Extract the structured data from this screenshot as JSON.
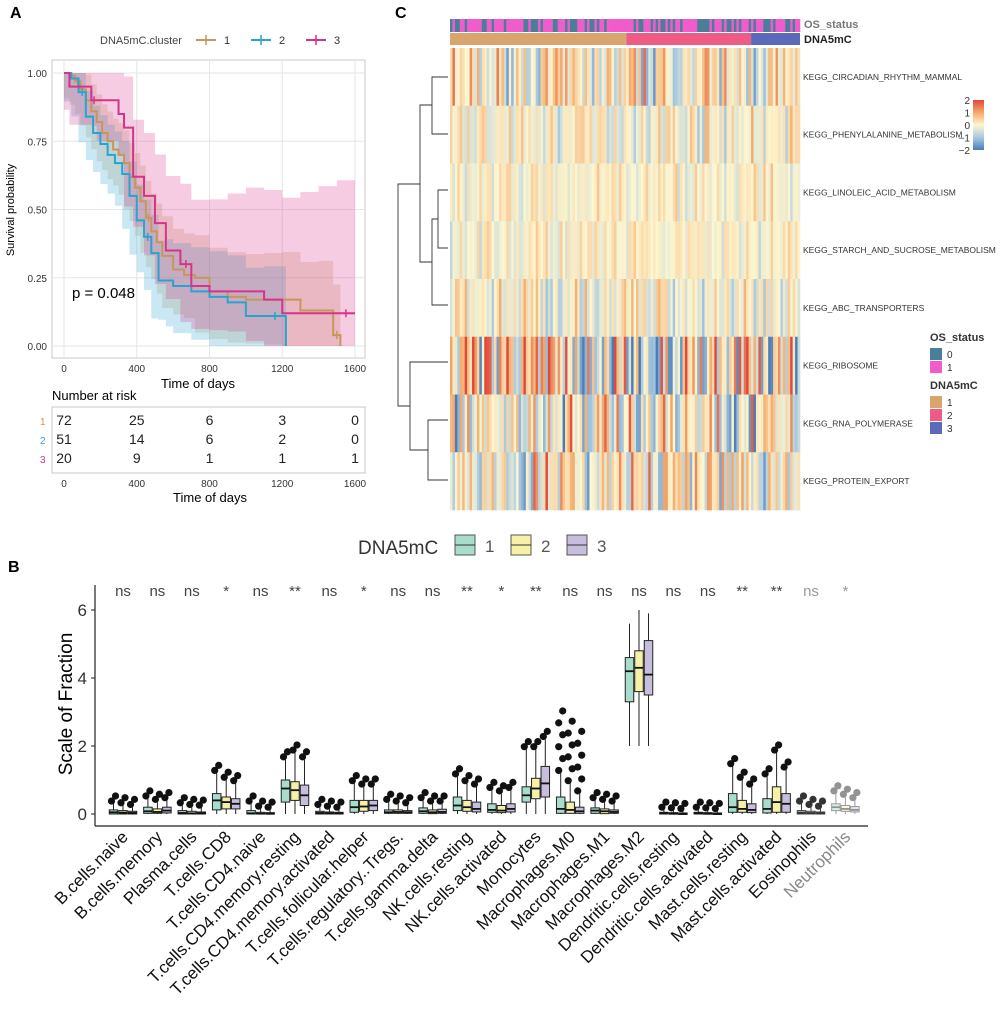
{
  "panel_labels": {
    "a": "A",
    "b": "B",
    "c": "C"
  },
  "colors": {
    "km_1": "#c8965a",
    "km_2": "#2ba3cf",
    "km_3": "#d6338a",
    "os_0": "#4a7f99",
    "os_1": "#f05ccc",
    "dna_1": "#d9a46d",
    "dna_2": "#ee5c86",
    "dna_3": "#5c69b8",
    "box_1": "#a8dccd",
    "box_2": "#f6f1a6",
    "box_3": "#c7bedd"
  },
  "chart_data": [
    {
      "id": "survival",
      "type": "line",
      "title": "",
      "xlabel": "Time of days",
      "ylabel": "Survival probability",
      "xlim": [
        0,
        1600
      ],
      "ylim": [
        0,
        1
      ],
      "x_ticks": [
        "0",
        "400",
        "800",
        "1200",
        "1600"
      ],
      "y_ticks": [
        "0.00",
        "0.25",
        "0.50",
        "0.75",
        "1.00"
      ],
      "legend_title": "DNA5mC.cluster",
      "legend_position": "top",
      "p_value_text": "p = 0.048",
      "series": [
        {
          "name": "1",
          "x": [
            0,
            30,
            60,
            90,
            120,
            150,
            180,
            210,
            240,
            270,
            300,
            330,
            360,
            390,
            420,
            450,
            480,
            510,
            540,
            600,
            660,
            720,
            800,
            900,
            1000,
            1100,
            1200,
            1300,
            1400,
            1480,
            1520
          ],
          "y": [
            1.0,
            0.99,
            0.97,
            0.94,
            0.9,
            0.86,
            0.82,
            0.78,
            0.75,
            0.72,
            0.7,
            0.67,
            0.62,
            0.58,
            0.53,
            0.47,
            0.42,
            0.38,
            0.33,
            0.28,
            0.26,
            0.25,
            0.2,
            0.18,
            0.17,
            0.17,
            0.17,
            0.13,
            0.13,
            0.04,
            0.0
          ]
        },
        {
          "name": "2",
          "x": [
            0,
            40,
            80,
            120,
            160,
            200,
            240,
            280,
            320,
            360,
            400,
            440,
            480,
            520,
            560,
            600,
            700,
            800,
            900,
            1000,
            1100,
            1220
          ],
          "y": [
            1.0,
            0.98,
            0.93,
            0.84,
            0.78,
            0.74,
            0.7,
            0.67,
            0.63,
            0.55,
            0.46,
            0.4,
            0.34,
            0.24,
            0.24,
            0.22,
            0.2,
            0.18,
            0.16,
            0.11,
            0.11,
            0.0
          ]
        },
        {
          "name": "3",
          "x": [
            0,
            30,
            150,
            180,
            300,
            330,
            380,
            440,
            500,
            560,
            640,
            700,
            800,
            900,
            1000,
            1100,
            1200,
            1300,
            1400,
            1500,
            1600
          ],
          "y": [
            1.0,
            0.95,
            0.9,
            0.9,
            0.85,
            0.8,
            0.62,
            0.55,
            0.45,
            0.35,
            0.3,
            0.22,
            0.2,
            0.2,
            0.2,
            0.17,
            0.12,
            0.12,
            0.12,
            0.12,
            0.12
          ]
        }
      ],
      "risk_table": {
        "title": "Number at risk",
        "xlabel": "Time of days",
        "times": [
          "0",
          "400",
          "800",
          "1200",
          "1600"
        ],
        "rows": [
          {
            "name": "1",
            "values": [
              "72",
              "25",
              "6",
              "3",
              "0"
            ]
          },
          {
            "name": "2",
            "values": [
              "51",
              "14",
              "6",
              "2",
              "0"
            ]
          },
          {
            "name": "3",
            "values": [
              "20",
              "9",
              "1",
              "1",
              "1"
            ]
          }
        ]
      }
    },
    {
      "id": "heatmap",
      "type": "heatmap",
      "annotation_labels": [
        "OS_status",
        "DNA5mC"
      ],
      "rows": [
        "KEGG_CIRCADIAN_RHYTHM_MAMMAL",
        "KEGG_PHENYLALANINE_METABOLISM",
        "KEGG_LINOLEIC_ACID_METABOLISM",
        "KEGG_STARCH_AND_SUCROSE_METABOLISM",
        "KEGG_ABC_TRANSPORTERS",
        "KEGG_RIBOSOME",
        "KEGG_RNA_POLYMERASE",
        "KEGG_PROTEIN_EXPORT"
      ],
      "row_spread": [
        0.8,
        0.5,
        0.35,
        0.35,
        0.6,
        1.6,
        1.0,
        1.0
      ],
      "cluster_columns": {
        "1": 72,
        "2": 51,
        "3": 20
      },
      "colorbar_ticks": [
        "2",
        "1",
        "0",
        "−1",
        "−2"
      ],
      "colorbar_range": [
        -2,
        2
      ],
      "legends": [
        {
          "title": "OS_status",
          "items": [
            "0",
            "1"
          ]
        },
        {
          "title": "DNA5mC",
          "items": [
            "1",
            "2",
            "3"
          ]
        }
      ]
    },
    {
      "id": "boxplot",
      "type": "bar",
      "subtype": "boxplot",
      "legend_title": "DNA5mC",
      "legend_items": [
        "1",
        "2",
        "3"
      ],
      "ylabel": "Scale of Fraction",
      "ylim": [
        -0.3,
        6.8
      ],
      "y_ticks": [
        "0",
        "2",
        "4",
        "6"
      ],
      "categories": [
        "B.cells.naive",
        "B.cells.memory",
        "Plasma.cells",
        "T.cells.CD8",
        "T.cells.CD4.naive",
        "T.cells.CD4.memory.resting",
        "T.cells.CD4.memory.activated",
        "T.cells.follicular.helper",
        "T.cells.regulatory..Tregs.",
        "T.cells.gamma.delta",
        "NK.cells.resting",
        "NK.cells.activated",
        "Monocytes",
        "Macrophages.M0",
        "Macrophages.M1",
        "Macrophages.M2",
        "Dendritic.cells.resting",
        "Dendritic.cells.activated",
        "Mast.cells.resting",
        "Mast.cells.activated",
        "Eosinophils",
        "Neutrophils"
      ],
      "significance": [
        "ns",
        "ns",
        "ns",
        "*",
        "ns",
        "**",
        "ns",
        "*",
        "ns",
        "ns",
        "**",
        "*",
        "**",
        "ns",
        "ns",
        "ns",
        "ns",
        "ns",
        "**",
        "**",
        "ns",
        "*"
      ],
      "series": [
        {
          "name": "1",
          "stats": [
            [
              0,
              0,
              0.05,
              0.12,
              0.3
            ],
            [
              0,
              0.02,
              0.08,
              0.2,
              0.45
            ],
            [
              0,
              0,
              0.03,
              0.1,
              0.25
            ],
            [
              0,
              0.12,
              0.4,
              0.6,
              1.2
            ],
            [
              0,
              0,
              0.02,
              0.1,
              0.3
            ],
            [
              0,
              0.35,
              0.75,
              1.0,
              1.6
            ],
            [
              0,
              0,
              0.03,
              0.08,
              0.2
            ],
            [
              0,
              0.05,
              0.2,
              0.4,
              0.9
            ],
            [
              0,
              0.02,
              0.05,
              0.12,
              0.35
            ],
            [
              0,
              0.02,
              0.08,
              0.18,
              0.4
            ],
            [
              0,
              0.1,
              0.25,
              0.5,
              1.1
            ],
            [
              0,
              0.05,
              0.12,
              0.3,
              0.7
            ],
            [
              0,
              0.35,
              0.55,
              0.8,
              1.9
            ],
            [
              0,
              0.02,
              0.15,
              0.5,
              1.2
            ],
            [
              0,
              0.02,
              0.1,
              0.18,
              0.4
            ],
            [
              2.0,
              3.3,
              4.2,
              4.6,
              5.6
            ],
            [
              0,
              0,
              0.02,
              0.05,
              0.12
            ],
            [
              0,
              0,
              0.02,
              0.05,
              0.12
            ],
            [
              0,
              0.05,
              0.2,
              0.6,
              1.4
            ],
            [
              0,
              0.03,
              0.15,
              0.45,
              1.1
            ],
            [
              0,
              0,
              0.04,
              0.1,
              0.3
            ],
            [
              0,
              0.1,
              0.2,
              0.3,
              0.6
            ]
          ]
        },
        {
          "name": "2",
          "stats": [
            [
              0,
              0,
              0.04,
              0.1,
              0.25
            ],
            [
              0,
              0.02,
              0.06,
              0.15,
              0.35
            ],
            [
              0,
              0,
              0.02,
              0.08,
              0.2
            ],
            [
              0,
              0.15,
              0.35,
              0.5,
              1.0
            ],
            [
              0,
              0,
              0.01,
              0.05,
              0.15
            ],
            [
              0,
              0.4,
              0.7,
              0.95,
              1.8
            ],
            [
              0,
              0,
              0.02,
              0.06,
              0.15
            ],
            [
              0,
              0.08,
              0.22,
              0.4,
              0.8
            ],
            [
              0,
              0.02,
              0.06,
              0.12,
              0.3
            ],
            [
              0,
              0.01,
              0.05,
              0.12,
              0.3
            ],
            [
              0,
              0.08,
              0.2,
              0.4,
              0.9
            ],
            [
              0,
              0.04,
              0.1,
              0.25,
              0.6
            ],
            [
              0,
              0.45,
              0.75,
              1.05,
              1.9
            ],
            [
              0,
              0.02,
              0.12,
              0.35,
              0.9
            ],
            [
              0,
              0.01,
              0.08,
              0.15,
              0.35
            ],
            [
              2.0,
              3.6,
              4.3,
              4.8,
              6.0
            ],
            [
              0,
              0,
              0.01,
              0.04,
              0.1
            ],
            [
              0,
              0,
              0.01,
              0.04,
              0.1
            ],
            [
              0,
              0.05,
              0.15,
              0.4,
              1.0
            ],
            [
              0,
              0.05,
              0.35,
              0.8,
              1.8
            ],
            [
              0,
              0,
              0.03,
              0.08,
              0.2
            ],
            [
              0,
              0.08,
              0.15,
              0.25,
              0.5
            ]
          ]
        },
        {
          "name": "3",
          "stats": [
            [
              0,
              0,
              0.03,
              0.08,
              0.2
            ],
            [
              0,
              0.03,
              0.1,
              0.2,
              0.4
            ],
            [
              0,
              0,
              0.02,
              0.06,
              0.18
            ],
            [
              0,
              0.15,
              0.3,
              0.45,
              0.9
            ],
            [
              0,
              0,
              0.01,
              0.04,
              0.12
            ],
            [
              0,
              0.25,
              0.55,
              0.85,
              1.6
            ],
            [
              0,
              0,
              0.02,
              0.05,
              0.12
            ],
            [
              0,
              0.1,
              0.25,
              0.4,
              0.8
            ],
            [
              0,
              0.02,
              0.05,
              0.1,
              0.25
            ],
            [
              0,
              0.02,
              0.06,
              0.14,
              0.3
            ],
            [
              0,
              0.06,
              0.15,
              0.35,
              0.8
            ],
            [
              0,
              0.06,
              0.15,
              0.3,
              0.7
            ],
            [
              0,
              0.5,
              0.9,
              1.4,
              2.2
            ],
            [
              0,
              0.02,
              0.08,
              0.2,
              0.6
            ],
            [
              0,
              0.02,
              0.06,
              0.12,
              0.3
            ],
            [
              2.0,
              3.5,
              4.1,
              5.1,
              5.9
            ],
            [
              0,
              0,
              0.01,
              0.03,
              0.08
            ],
            [
              0,
              0,
              0.01,
              0.03,
              0.08
            ],
            [
              0,
              0.04,
              0.12,
              0.3,
              0.8
            ],
            [
              0,
              0.05,
              0.3,
              0.6,
              1.3
            ],
            [
              0,
              0,
              0.02,
              0.06,
              0.15
            ],
            [
              0,
              0.06,
              0.12,
              0.22,
              0.4
            ]
          ]
        }
      ]
    }
  ]
}
